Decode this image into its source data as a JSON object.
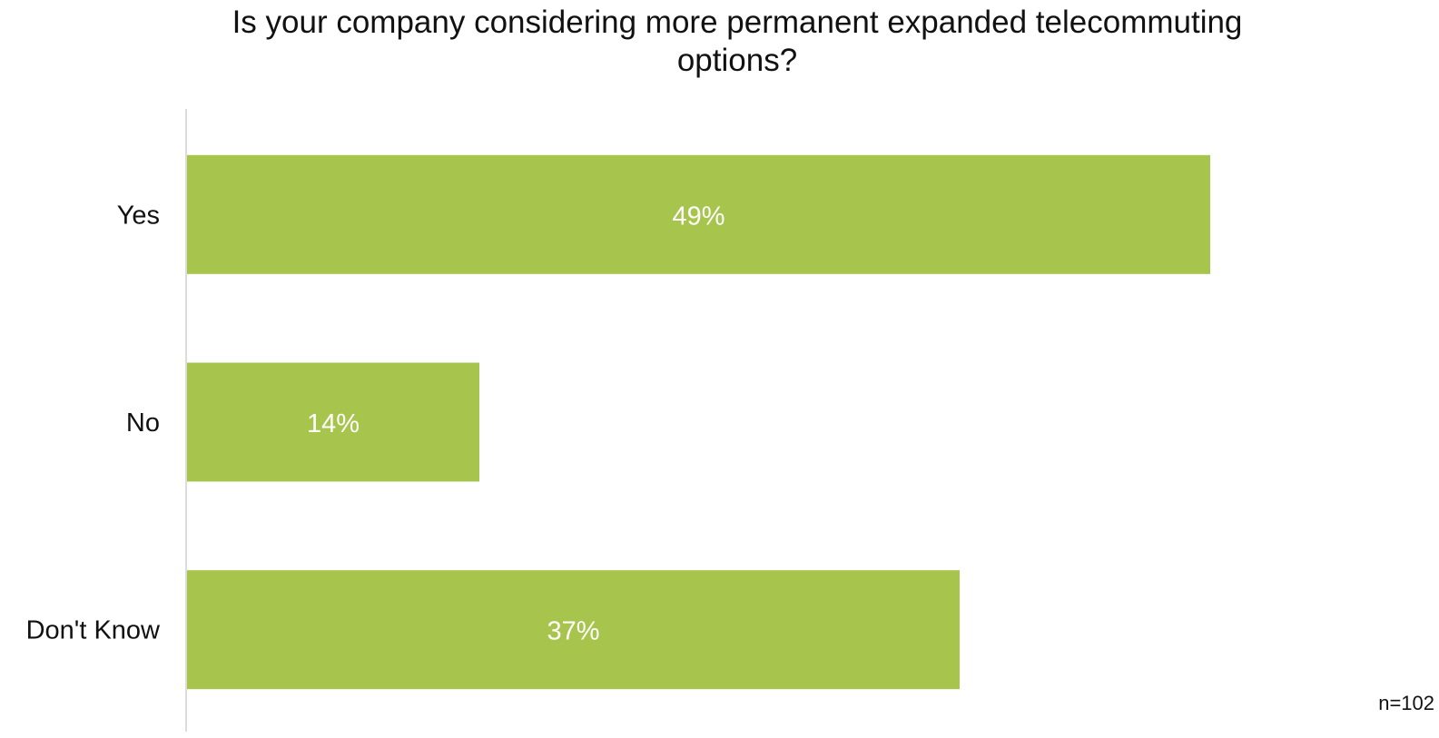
{
  "chart_data": {
    "type": "bar",
    "orientation": "horizontal",
    "title": "Is your company considering more permanent expanded telecommuting\noptions?",
    "categories": [
      "Yes",
      "No",
      "Don't Know"
    ],
    "values": [
      49,
      14,
      37
    ],
    "value_labels": [
      "49%",
      "14%",
      "37%"
    ],
    "unit": "%",
    "xlim": [
      0,
      60
    ],
    "xlabel": "",
    "ylabel": "",
    "grid": false,
    "legend": "none",
    "bar_color": "#a7c44c",
    "label_color": "#ffffff"
  },
  "footnote": "n=102"
}
